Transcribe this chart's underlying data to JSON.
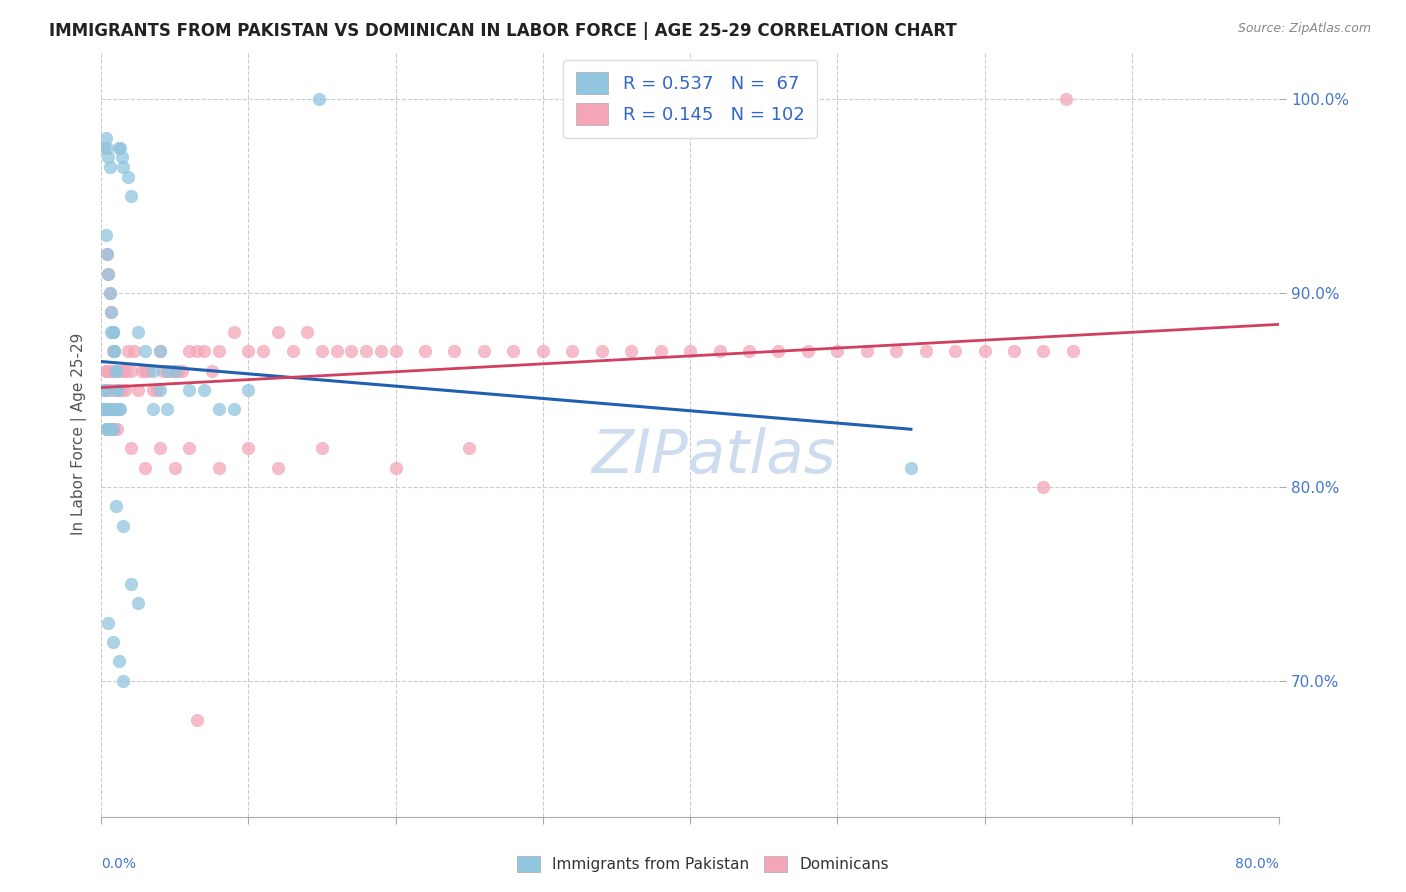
{
  "title": "IMMIGRANTS FROM PAKISTAN VS DOMINICAN IN LABOR FORCE | AGE 25-29 CORRELATION CHART",
  "source": "Source: ZipAtlas.com",
  "ylabel": "In Labor Force | Age 25-29",
  "legend_blue_r": "0.537",
  "legend_blue_n": "67",
  "legend_pink_r": "0.145",
  "legend_pink_n": "102",
  "legend_label_blue": "Immigrants from Pakistan",
  "legend_label_pink": "Dominicans",
  "blue_color": "#92c5de",
  "pink_color": "#f4a6b8",
  "trendline_blue_color": "#2060b0",
  "trendline_pink_color": "#d04060",
  "grid_color": "#cccccc",
  "background_color": "#ffffff",
  "legend_text_color": "#3366cc",
  "right_tick_color": "#4477cc",
  "xlim": [
    0.0,
    0.8
  ],
  "ylim": [
    0.63,
    1.025
  ],
  "x_tick_positions": [
    0.0,
    0.1,
    0.2,
    0.3,
    0.4,
    0.5,
    0.6,
    0.7,
    0.8
  ],
  "y_tick_positions": [
    0.7,
    0.8,
    0.9,
    1.0
  ],
  "watermark": "ZIPatlas",
  "watermark_color": "#cddcef"
}
